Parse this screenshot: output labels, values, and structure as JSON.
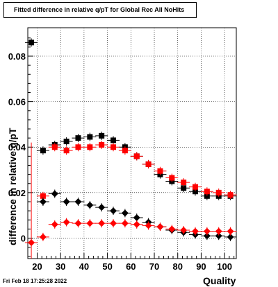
{
  "chart_data": {
    "type": "scatter",
    "title": "Fitted difference in relative q/pT for Global Rec All NoHits",
    "xlabel": "Quality",
    "ylabel": "difference in relative q/pT",
    "xlim": [
      16,
      105
    ],
    "ylim": [
      -0.009,
      0.0925
    ],
    "grid": true,
    "x_ticks": [
      "20",
      "30",
      "40",
      "50",
      "60",
      "70",
      "80",
      "90",
      "100"
    ],
    "y_ticks": [
      "0",
      "0.02",
      "0.04",
      "0.06",
      "0.08"
    ],
    "series": [
      {
        "color": "#000000",
        "marker": "square",
        "points": [
          [
            17.5,
            0.086
          ],
          [
            22.5,
            0.0385
          ],
          [
            27.5,
            0.041
          ],
          [
            32.5,
            0.0425
          ],
          [
            37.5,
            0.044
          ],
          [
            42.5,
            0.0445
          ],
          [
            47.5,
            0.045
          ],
          [
            52.5,
            0.043
          ],
          [
            57.5,
            0.04
          ],
          [
            62.5,
            0.036
          ],
          [
            67.5,
            0.0325
          ],
          [
            72.5,
            0.028
          ],
          [
            77.5,
            0.025
          ],
          [
            82.5,
            0.022
          ],
          [
            87.5,
            0.0205
          ],
          [
            92.5,
            0.0185
          ],
          [
            97.5,
            0.0185
          ],
          [
            102.5,
            0.0185
          ]
        ]
      },
      {
        "color": "#ff0000",
        "marker": "square",
        "points": [
          [
            22.5,
            0.0185
          ],
          [
            27.5,
            0.04
          ],
          [
            32.5,
            0.0385
          ],
          [
            37.5,
            0.04
          ],
          [
            42.5,
            0.04
          ],
          [
            47.5,
            0.041
          ],
          [
            52.5,
            0.04
          ],
          [
            57.5,
            0.0385
          ],
          [
            62.5,
            0.036
          ],
          [
            67.5,
            0.0325
          ],
          [
            72.5,
            0.0295
          ],
          [
            77.5,
            0.0265
          ],
          [
            82.5,
            0.0245
          ],
          [
            87.5,
            0.0225
          ],
          [
            92.5,
            0.0205
          ],
          [
            97.5,
            0.02
          ],
          [
            102.5,
            0.019
          ]
        ]
      },
      {
        "color": "#000000",
        "marker": "diamond",
        "points": [
          [
            22.5,
            0.016
          ],
          [
            27.5,
            0.0195
          ],
          [
            32.5,
            0.016
          ],
          [
            37.5,
            0.016
          ],
          [
            42.5,
            0.0145
          ],
          [
            47.5,
            0.0135
          ],
          [
            52.5,
            0.012
          ],
          [
            57.5,
            0.011
          ],
          [
            62.5,
            0.009
          ],
          [
            67.5,
            0.007
          ],
          [
            72.5,
            0.005
          ],
          [
            77.5,
            0.0035
          ],
          [
            82.5,
            0.0025
          ],
          [
            87.5,
            0.0015
          ],
          [
            92.5,
            0.001
          ],
          [
            97.5,
            0.001
          ],
          [
            102.5,
            0.0005
          ]
        ]
      },
      {
        "color": "#ff0000",
        "marker": "diamond",
        "points": [
          [
            17.5,
            -0.002
          ],
          [
            22.5,
            0.0005
          ],
          [
            27.5,
            0.006
          ],
          [
            32.5,
            0.007
          ],
          [
            37.5,
            0.0065
          ],
          [
            42.5,
            0.0065
          ],
          [
            47.5,
            0.0065
          ],
          [
            52.5,
            0.0065
          ],
          [
            57.5,
            0.0065
          ],
          [
            62.5,
            0.006
          ],
          [
            67.5,
            0.0055
          ],
          [
            72.5,
            0.005
          ],
          [
            77.5,
            0.004
          ],
          [
            82.5,
            0.0035
          ],
          [
            87.5,
            0.003
          ],
          [
            92.5,
            0.003
          ],
          [
            97.5,
            0.003
          ],
          [
            102.5,
            0.003
          ]
        ]
      }
    ]
  },
  "footer": {
    "timestamp": "Fri Feb 18 17:25:28 2022"
  }
}
